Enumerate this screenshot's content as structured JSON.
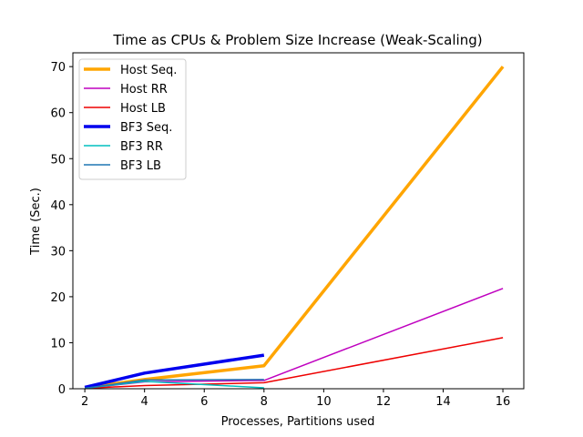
{
  "chart_data": {
    "type": "line",
    "title": "Time as CPUs & Problem Size Increase (Weak-Scaling)",
    "xlabel": "Processes, Partitions used",
    "ylabel": "Time (Sec.)",
    "xlim": [
      1.6,
      16.7
    ],
    "ylim": [
      0,
      73
    ],
    "xticks": [
      2,
      4,
      6,
      8,
      10,
      12,
      14,
      16
    ],
    "yticks": [
      0,
      10,
      20,
      30,
      40,
      50,
      60,
      70
    ],
    "grid": false,
    "legend_position": "top-left",
    "series": [
      {
        "name": "Host Seq.",
        "color": "#ffa500",
        "width": 3.5,
        "x": [
          2,
          4,
          8,
          16
        ],
        "y": [
          0.2,
          2.0,
          5.0,
          70.0
        ]
      },
      {
        "name": "Host RR",
        "color": "#bf00bf",
        "width": 1.5,
        "x": [
          2,
          4,
          8,
          16
        ],
        "y": [
          0.1,
          1.5,
          1.8,
          21.8
        ]
      },
      {
        "name": "Host LB",
        "color": "#ee0000",
        "width": 1.5,
        "x": [
          2,
          4,
          8,
          16
        ],
        "y": [
          0.1,
          0.7,
          1.3,
          11.1
        ]
      },
      {
        "name": "BF3 Seq.",
        "color": "#0000ee",
        "width": 3.5,
        "x": [
          2,
          4,
          8
        ],
        "y": [
          0.3,
          3.4,
          7.3
        ]
      },
      {
        "name": "BF3 RR",
        "color": "#00bfbf",
        "width": 1.5,
        "x": [
          2,
          4,
          8
        ],
        "y": [
          0.1,
          1.6,
          0.2
        ]
      },
      {
        "name": "BF3 LB",
        "color": "#1f77b4",
        "width": 1.5,
        "x": [
          2,
          4,
          8
        ],
        "y": [
          0.1,
          1.9,
          2.0
        ]
      }
    ]
  }
}
